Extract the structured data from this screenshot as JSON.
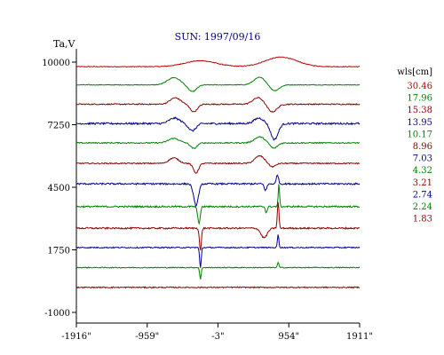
{
  "chart_data": {
    "type": "line",
    "title": "SUN: 1997/09/16",
    "ylabel": "Ta,V",
    "xlabel": "",
    "x_ticks": [
      "-1916\"",
      "-959\"",
      "-3\"",
      "954\"",
      "1911\""
    ],
    "x_tick_values": [
      -1916,
      -959,
      -3,
      954,
      1911
    ],
    "y_ticks": [
      "10000",
      "7250",
      "4500",
      "1750",
      "-1000"
    ],
    "y_tick_values": [
      10000,
      7250,
      4500,
      1750,
      -1000
    ],
    "xlim": [
      -1916,
      1911
    ],
    "ylim": [
      -1000,
      10000
    ],
    "legend": {
      "title": "wls[cm]",
      "placement": "right"
    },
    "grid": false,
    "colors": {
      "red": "#c00000",
      "green": "#008000",
      "darkred": "#900000",
      "blue": "#000090",
      "axis": "#000000",
      "title": "#000080"
    },
    "series": [
      {
        "name": "30.46",
        "color": "#c00000",
        "baseline": 9800,
        "noise": 15,
        "features": [
          {
            "x": -240,
            "w": 300,
            "a": 260
          },
          {
            "x": 850,
            "w": 300,
            "a": 420
          }
        ]
      },
      {
        "name": "17.96",
        "color": "#008000",
        "baseline": 9000,
        "noise": 15,
        "features": [
          {
            "x": -600,
            "w": 120,
            "a": 320
          },
          {
            "x": -350,
            "w": 80,
            "a": -300
          },
          {
            "x": 560,
            "w": 110,
            "a": 330
          },
          {
            "x": 760,
            "w": 90,
            "a": -260
          }
        ]
      },
      {
        "name": "15.38",
        "color": "#900000",
        "baseline": 8150,
        "noise": 25,
        "features": [
          {
            "x": -580,
            "w": 100,
            "a": 280
          },
          {
            "x": -330,
            "w": 70,
            "a": -330
          },
          {
            "x": 540,
            "w": 100,
            "a": 290
          },
          {
            "x": 730,
            "w": 90,
            "a": -340
          }
        ]
      },
      {
        "name": "13.95",
        "color": "#000090",
        "baseline": 7300,
        "noise": 40,
        "features": [
          {
            "x": -590,
            "w": 100,
            "a": 240
          },
          {
            "x": -350,
            "w": 70,
            "a": -320
          },
          {
            "x": 550,
            "w": 90,
            "a": 240
          },
          {
            "x": 760,
            "w": 70,
            "a": -700
          }
        ]
      },
      {
        "name": "10.17",
        "color": "#008000",
        "baseline": 6450,
        "noise": 25,
        "features": [
          {
            "x": -600,
            "w": 100,
            "a": 200
          },
          {
            "x": -330,
            "w": 60,
            "a": -250
          },
          {
            "x": 560,
            "w": 100,
            "a": 260
          },
          {
            "x": 750,
            "w": 70,
            "a": -240
          }
        ]
      },
      {
        "name": "8.96",
        "color": "#900000",
        "baseline": 5550,
        "noise": 25,
        "features": [
          {
            "x": -600,
            "w": 90,
            "a": 240
          },
          {
            "x": -300,
            "w": 50,
            "a": -420
          },
          {
            "x": 560,
            "w": 90,
            "a": 330
          },
          {
            "x": 730,
            "w": 60,
            "a": -160
          }
        ]
      },
      {
        "name": "7.03",
        "color": "#000090",
        "baseline": 4650,
        "noise": 35,
        "features": [
          {
            "x": -300,
            "w": 45,
            "a": -950
          },
          {
            "x": 640,
            "w": 25,
            "a": -280
          },
          {
            "x": 800,
            "w": 20,
            "a": 420
          }
        ]
      },
      {
        "name": "4.32",
        "color": "#008000",
        "baseline": 3650,
        "noise": 35,
        "features": [
          {
            "x": -260,
            "w": 25,
            "a": -720
          },
          {
            "x": 820,
            "w": 12,
            "a": 1050
          },
          {
            "x": 650,
            "w": 18,
            "a": -260
          }
        ]
      },
      {
        "name": "3.21",
        "color": "#900000",
        "baseline": 2700,
        "noise": 35,
        "features": [
          {
            "x": -240,
            "w": 18,
            "a": -1000
          },
          {
            "x": 620,
            "w": 60,
            "a": -420
          },
          {
            "x": 810,
            "w": 15,
            "a": 1150
          }
        ]
      },
      {
        "name": "2.74",
        "color": "#000090",
        "baseline": 1850,
        "noise": 25,
        "features": [
          {
            "x": -240,
            "w": 15,
            "a": -900
          },
          {
            "x": 810,
            "w": 14,
            "a": 560
          }
        ]
      },
      {
        "name": "2.24",
        "color": "#008000",
        "baseline": 970,
        "noise": 20,
        "features": [
          {
            "x": -240,
            "w": 14,
            "a": -520
          },
          {
            "x": 810,
            "w": 14,
            "a": 220
          }
        ]
      },
      {
        "name": "1.83",
        "color": "#900000",
        "baseline": 100,
        "noise": 25,
        "features": []
      }
    ]
  }
}
